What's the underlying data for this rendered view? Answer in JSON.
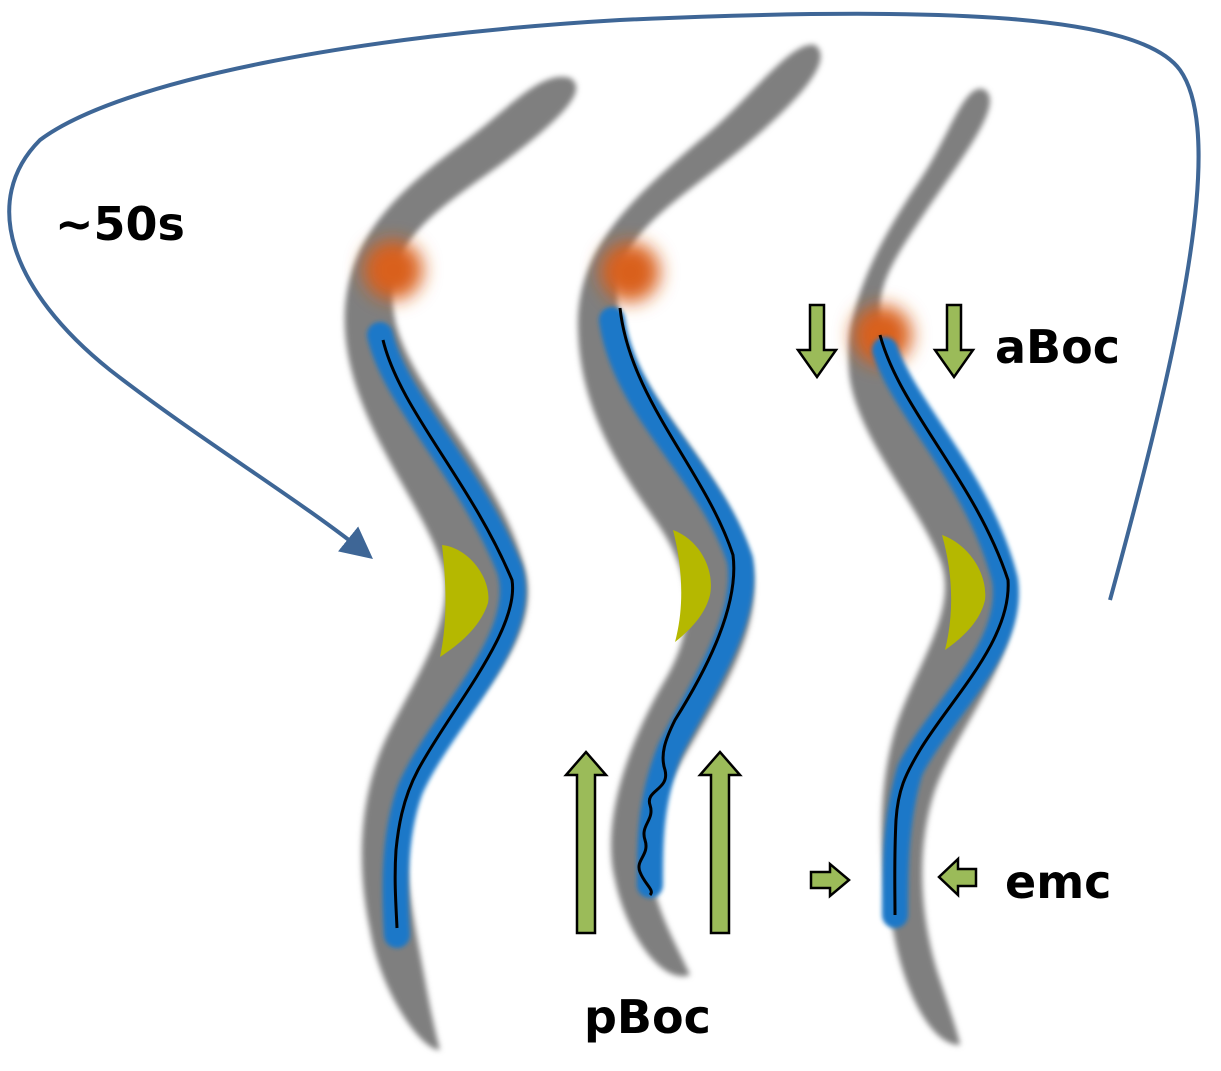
{
  "labels": {
    "cycle_time": "~50s",
    "anterior": "aBoc",
    "posterior": "pBoc",
    "expulsion": "emc"
  },
  "colors": {
    "background": "#ffffff",
    "worm_body": "#7f7f7f",
    "intestine": "#1a78c8",
    "gut_line": "#000000",
    "pharynx_spot": "#d9601a",
    "vulva": "#b5b800",
    "arrow_fill": "#9bbb59",
    "arrow_stroke": "#000000",
    "cycle_arc": "#3e6696"
  },
  "panels": [
    {
      "phase": "resting"
    },
    {
      "phase": "pBoc"
    },
    {
      "phase": "aBoc-emc"
    }
  ]
}
